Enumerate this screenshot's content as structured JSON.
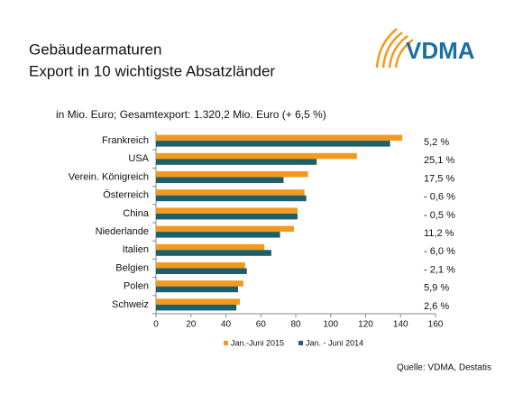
{
  "logo": "VDMA",
  "chart_data": {
    "type": "hbar",
    "title": "Gebäudearmaturen",
    "subtitle": "Export in 10 wichtigste Absatzländer",
    "note": "in Mio. Euro; Gesamtexport: 1.320,2 Mio. Euro (+ 6,5 %)",
    "source": "Quelle: VDMA, Destatis",
    "categories": [
      "Frankreich",
      "USA",
      "Verein. Königreich",
      "Österreich",
      "China",
      "Niederlande",
      "Italien",
      "Belgien",
      "Polen",
      "Schweiz"
    ],
    "series": [
      {
        "name": "Jan.-Juni 2015",
        "color": "#f39a1e",
        "values": [
          141,
          115,
          87,
          85,
          81,
          79,
          62,
          51,
          50,
          48
        ]
      },
      {
        "name": "Jan. - Juni 2014",
        "color": "#1d5f6a",
        "values": [
          134,
          92,
          73,
          86,
          81,
          71,
          66,
          52,
          47,
          46
        ]
      }
    ],
    "changes": [
      "5,2 %",
      "25,1 %",
      "17,5 %",
      "- 0,6 %",
      "- 0,5 %",
      "11,2 %",
      "- 6,0 %",
      "- 2,1 %",
      "5,9 %",
      "2,6 %"
    ],
    "xlim": [
      0,
      160
    ],
    "xticks": [
      0,
      20,
      40,
      60,
      80,
      100,
      120,
      140,
      160
    ],
    "grid": false,
    "legend": "bottom"
  }
}
